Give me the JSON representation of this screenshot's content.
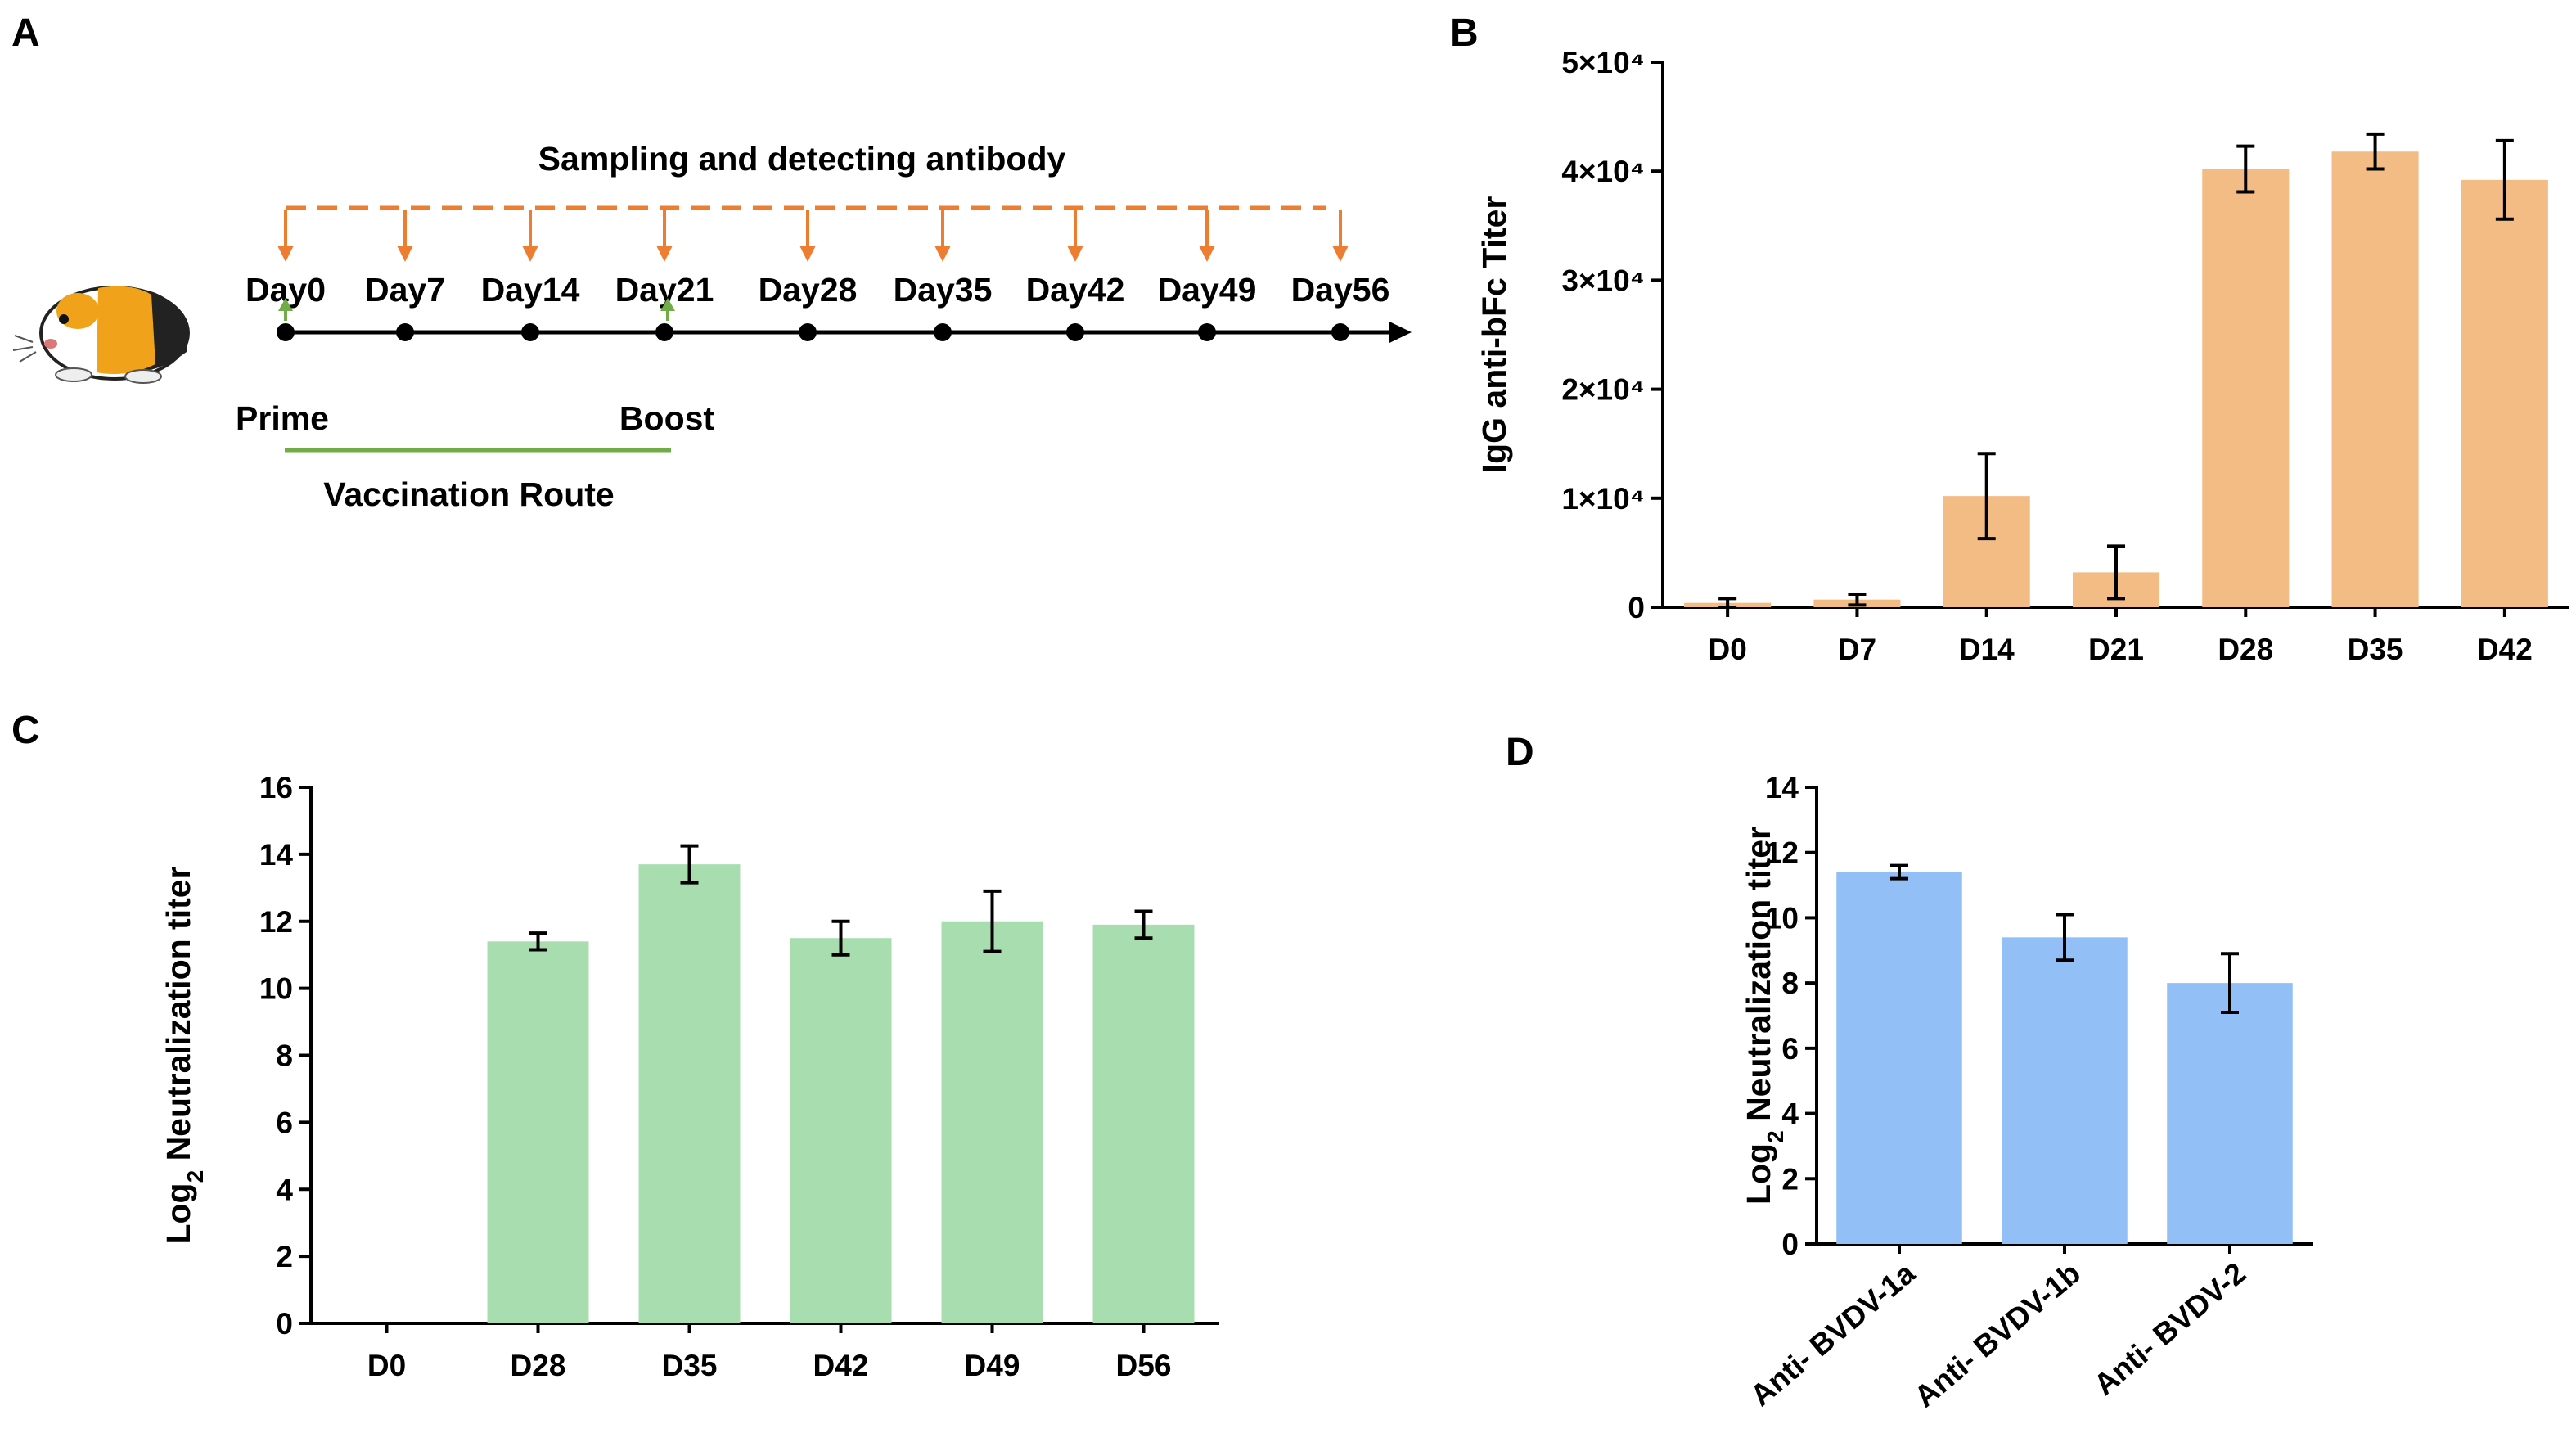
{
  "colors": {
    "orange_bar": "#f4bc85",
    "green_bar": "#a8ddb0",
    "blue_bar": "#92bff5",
    "sampling_arrow": "#ed7d31",
    "vaccination": "#70ad47",
    "axis": "#000000"
  },
  "panel_a": {
    "letter": "A",
    "sampling_title": "Sampling and detecting antibody",
    "days": [
      "Day0",
      "Day7",
      "Day14",
      "Day21",
      "Day28",
      "Day35",
      "Day42",
      "Day49",
      "Day56"
    ],
    "prime_label": "Prime",
    "boost_label": "Boost",
    "route_label": "Vaccination Route",
    "animal_icon": "guinea-pig-icon"
  },
  "chart_data": [
    {
      "id": "B",
      "type": "bar",
      "title": "",
      "xlabel": "",
      "ylabel": "IgG anti-bFc Titer",
      "categories": [
        "D0",
        "D7",
        "D14",
        "D21",
        "D28",
        "D35",
        "D42"
      ],
      "values": [
        400,
        700,
        10200,
        3200,
        40200,
        41800,
        39200
      ],
      "errors": [
        400,
        500,
        3900,
        2400,
        2100,
        1600,
        3600
      ],
      "ylim": [
        0,
        50000
      ],
      "yticks": [
        0,
        10000,
        20000,
        30000,
        40000,
        50000
      ],
      "ytick_labels": [
        "0",
        "1×10⁴",
        "2×10⁴",
        "3×10⁴",
        "4×10⁴",
        "5×10⁴"
      ],
      "color": "#f4bc85"
    },
    {
      "id": "C",
      "type": "bar",
      "title": "",
      "xlabel": "",
      "ylabel": "Log₂ Neutralization titer",
      "categories": [
        "D0",
        "D28",
        "D35",
        "D42",
        "D49",
        "D56"
      ],
      "values": [
        0,
        11.4,
        13.7,
        11.5,
        12.0,
        11.9
      ],
      "errors": [
        0,
        0.25,
        0.55,
        0.5,
        0.9,
        0.4
      ],
      "ylim": [
        0,
        16
      ],
      "yticks": [
        0,
        2,
        4,
        6,
        8,
        10,
        12,
        14,
        16
      ],
      "ytick_labels": [
        "0",
        "2",
        "4",
        "6",
        "8",
        "10",
        "12",
        "14",
        "16"
      ],
      "color": "#a8ddb0"
    },
    {
      "id": "D",
      "type": "bar",
      "title": "",
      "xlabel": "",
      "ylabel": "Log₂ Neutralization titer",
      "categories": [
        "Anti- BVDV-1a",
        "Anti- BVDV-1b",
        "Anti- BVDV-2"
      ],
      "values": [
        11.4,
        9.4,
        8.0
      ],
      "errors": [
        0.2,
        0.7,
        0.9
      ],
      "ylim": [
        0,
        14
      ],
      "yticks": [
        0,
        2,
        4,
        6,
        8,
        10,
        12,
        14
      ],
      "ytick_labels": [
        "0",
        "2",
        "4",
        "6",
        "8",
        "10",
        "12",
        "14"
      ],
      "color": "#92bff5"
    }
  ]
}
